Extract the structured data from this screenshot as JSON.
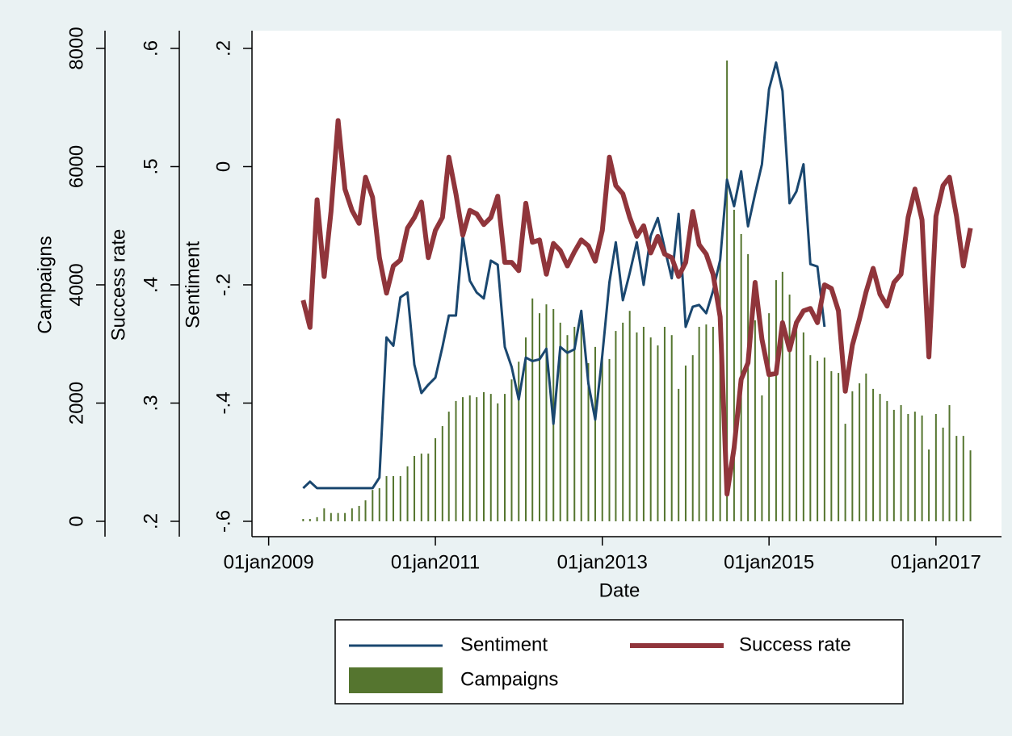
{
  "chart_data": {
    "type": "combo",
    "x_label": "Date",
    "x": [
      "2009-06-01",
      "2009-07-01",
      "2009-08-01",
      "2009-09-01",
      "2009-10-01",
      "2009-11-01",
      "2009-12-01",
      "2010-01-01",
      "2010-02-01",
      "2010-03-01",
      "2010-04-01",
      "2010-05-01",
      "2010-06-01",
      "2010-07-01",
      "2010-08-01",
      "2010-09-01",
      "2010-10-01",
      "2010-11-01",
      "2010-12-01",
      "2011-01-01",
      "2011-02-01",
      "2011-03-01",
      "2011-04-01",
      "2011-05-01",
      "2011-06-01",
      "2011-07-01",
      "2011-08-01",
      "2011-09-01",
      "2011-10-01",
      "2011-11-01",
      "2011-12-01",
      "2012-01-01",
      "2012-02-01",
      "2012-03-01",
      "2012-04-01",
      "2012-05-01",
      "2012-06-01",
      "2012-07-01",
      "2012-08-01",
      "2012-09-01",
      "2012-10-01",
      "2012-11-01",
      "2012-12-01",
      "2013-01-01",
      "2013-02-01",
      "2013-03-01",
      "2013-04-01",
      "2013-05-01",
      "2013-06-01",
      "2013-07-01",
      "2013-08-01",
      "2013-09-01",
      "2013-10-01",
      "2013-11-01",
      "2013-12-01",
      "2014-01-01",
      "2014-02-01",
      "2014-03-01",
      "2014-04-01",
      "2014-05-01",
      "2014-06-01",
      "2014-07-01",
      "2014-08-01",
      "2014-09-01",
      "2014-10-01",
      "2014-11-01",
      "2014-12-01",
      "2015-01-01",
      "2015-02-01",
      "2015-03-01",
      "2015-04-01",
      "2015-05-01",
      "2015-06-01",
      "2015-07-01",
      "2015-08-01",
      "2015-09-01",
      "2015-10-01",
      "2015-11-01",
      "2015-12-01",
      "2016-01-01",
      "2016-02-01",
      "2016-03-01",
      "2016-04-01",
      "2016-05-01",
      "2016-06-01",
      "2016-07-01",
      "2016-08-01",
      "2016-09-01",
      "2016-10-01",
      "2016-11-01",
      "2016-12-01",
      "2017-01-01",
      "2017-02-01",
      "2017-03-01",
      "2017-04-01",
      "2017-05-01",
      "2017-06-01"
    ],
    "xlim": [
      "2008-10-20",
      "2017-10-15"
    ],
    "xticks": [
      {
        "value": "2009-01-01",
        "label": "01jan2009"
      },
      {
        "value": "2011-01-01",
        "label": "01jan2011"
      },
      {
        "value": "2013-01-01",
        "label": "01jan2013"
      },
      {
        "value": "2015-01-01",
        "label": "01jan2015"
      },
      {
        "value": "2017-01-01",
        "label": "01jan2017"
      }
    ],
    "y_label": "Campaigns",
    "ylim": [
      -260,
      8300
    ],
    "yticks": [
      0,
      2000,
      4000,
      6000,
      8000
    ],
    "y2_label": "Success rate",
    "y2lim": [
      0.187,
      0.615
    ],
    "y2ticks": [
      {
        "value": 0.2,
        "label": ".2"
      },
      {
        "value": 0.3,
        "label": ".3"
      },
      {
        "value": 0.4,
        "label": ".4"
      },
      {
        "value": 0.5,
        "label": ".5"
      },
      {
        "value": 0.6,
        "label": ".6"
      }
    ],
    "y3_label": "Sentiment",
    "y3lim": [
      -0.626,
      0.23
    ],
    "y3ticks": [
      {
        "value": -0.6,
        "label": "-.6"
      },
      {
        "value": -0.4,
        "label": "-.4"
      },
      {
        "value": -0.2,
        "label": "-.2"
      },
      0,
      {
        "value": 0.2,
        "label": ".2"
      }
    ],
    "series": [
      {
        "name": "Sentiment",
        "type": "line",
        "axis": "y3",
        "color": "#1a476f",
        "values": [
          -0.544,
          -0.533,
          -0.544,
          -0.544,
          -0.544,
          -0.544,
          -0.544,
          -0.544,
          -0.544,
          -0.544,
          -0.544,
          -0.526,
          -0.289,
          -0.303,
          -0.221,
          -0.213,
          -0.335,
          -0.383,
          -0.369,
          -0.357,
          -0.305,
          -0.252,
          -0.252,
          -0.117,
          -0.193,
          -0.213,
          -0.223,
          -0.159,
          -0.166,
          -0.305,
          -0.339,
          -0.394,
          -0.323,
          -0.329,
          -0.326,
          -0.308,
          -0.435,
          -0.305,
          -0.315,
          -0.309,
          -0.244,
          -0.367,
          -0.428,
          -0.319,
          -0.196,
          -0.128,
          -0.226,
          -0.18,
          -0.128,
          -0.2,
          -0.117,
          -0.087,
          -0.138,
          -0.189,
          -0.08,
          -0.271,
          -0.237,
          -0.234,
          -0.248,
          -0.21,
          -0.158,
          -0.022,
          -0.067,
          -0.008,
          -0.101,
          -0.046,
          0.004,
          0.131,
          0.176,
          0.128,
          -0.062,
          -0.042,
          0.004,
          -0.165,
          -0.169,
          -0.271,
          null,
          null,
          null,
          null,
          null,
          null,
          null,
          null,
          null,
          null,
          null,
          null,
          null,
          null,
          null,
          null,
          null,
          null,
          null,
          null,
          null
        ]
      },
      {
        "name": "Success rate",
        "type": "line",
        "axis": "y2",
        "color": "#90353b",
        "values": [
          0.387,
          0.364,
          0.472,
          0.407,
          0.462,
          0.539,
          0.481,
          0.463,
          0.452,
          0.491,
          0.474,
          0.423,
          0.393,
          0.416,
          0.421,
          0.448,
          0.457,
          0.47,
          0.423,
          0.446,
          0.457,
          0.508,
          0.477,
          0.442,
          0.463,
          0.46,
          0.451,
          0.457,
          0.475,
          0.419,
          0.419,
          0.412,
          0.469,
          0.436,
          0.438,
          0.409,
          0.435,
          0.429,
          0.416,
          0.428,
          0.438,
          0.433,
          0.42,
          0.446,
          0.508,
          0.484,
          0.477,
          0.457,
          0.441,
          0.45,
          0.427,
          0.441,
          0.426,
          0.423,
          0.407,
          0.419,
          0.462,
          0.434,
          0.426,
          0.409,
          0.373,
          0.223,
          0.262,
          0.32,
          0.334,
          0.402,
          0.354,
          0.324,
          0.325,
          0.368,
          0.345,
          0.368,
          0.378,
          0.38,
          0.368,
          0.4,
          0.397,
          0.378,
          0.31,
          0.349,
          0.371,
          0.394,
          0.414,
          0.392,
          0.382,
          0.402,
          0.409,
          0.457,
          0.481,
          0.455,
          0.339,
          0.458,
          0.484,
          0.491,
          0.458,
          0.416,
          0.448
        ]
      },
      {
        "name": "Campaigns",
        "type": "bar",
        "axis": "y",
        "color": "#55752f",
        "values": [
          40,
          40,
          70,
          220,
          140,
          140,
          140,
          220,
          260,
          355,
          530,
          560,
          765,
          765,
          765,
          930,
          1105,
          1145,
          1145,
          1405,
          1610,
          1855,
          2035,
          2100,
          2130,
          2100,
          2185,
          2155,
          1995,
          2155,
          2400,
          2700,
          3110,
          3770,
          3520,
          3670,
          3590,
          3360,
          3150,
          3290,
          3535,
          2675,
          2950,
          2810,
          2745,
          3220,
          3360,
          3560,
          3195,
          3290,
          3110,
          2975,
          3290,
          3150,
          2240,
          2635,
          2810,
          3290,
          3330,
          3290,
          4420,
          7795,
          5270,
          4860,
          4520,
          3400,
          2130,
          3520,
          4080,
          4220,
          3835,
          3385,
          3195,
          2810,
          2715,
          2770,
          2540,
          2510,
          1650,
          2200,
          2335,
          2500,
          2240,
          2155,
          2035,
          1885,
          1965,
          1815,
          1855,
          1790,
          1215,
          1815,
          1585,
          1965,
          1445,
          1445,
          1200
        ]
      }
    ]
  }
}
